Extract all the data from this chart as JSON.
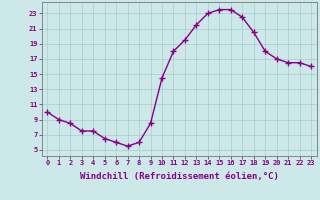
{
  "x": [
    0,
    1,
    2,
    3,
    4,
    5,
    6,
    7,
    8,
    9,
    10,
    11,
    12,
    13,
    14,
    15,
    16,
    17,
    18,
    19,
    20,
    21,
    22,
    23
  ],
  "y": [
    10,
    9,
    8.5,
    7.5,
    7.5,
    6.5,
    6,
    5.5,
    6,
    8.5,
    14.5,
    18,
    19.5,
    21.5,
    23,
    23.5,
    23.5,
    22.5,
    20.5,
    18,
    17,
    16.5,
    16.5,
    16
  ],
  "line_color": "#880088",
  "marker": "+",
  "markersize": 4,
  "linewidth": 1.0,
  "background_color": "#cce8e8",
  "grid_color": "#aacccc",
  "xlabel": "Windchill (Refroidissement éolien,°C)",
  "xlabel_fontsize": 6.5,
  "ytick_labels": [
    "5",
    "7",
    "9",
    "11",
    "13",
    "15",
    "17",
    "19",
    "21",
    "23"
  ],
  "ytick_vals": [
    5,
    7,
    9,
    11,
    13,
    15,
    17,
    19,
    21,
    23
  ],
  "ylim": [
    4.2,
    24.5
  ],
  "xlim": [
    -0.5,
    23.5
  ],
  "xtick_vals": [
    0,
    1,
    2,
    3,
    4,
    5,
    6,
    7,
    8,
    9,
    10,
    11,
    12,
    13,
    14,
    15,
    16,
    17,
    18,
    19,
    20,
    21,
    22,
    23
  ],
  "xtick_labels": [
    "0",
    "1",
    "2",
    "3",
    "4",
    "5",
    "6",
    "7",
    "8",
    "9",
    "10",
    "11",
    "12",
    "13",
    "14",
    "15",
    "16",
    "17",
    "18",
    "19",
    "20",
    "21",
    "22",
    "23"
  ],
  "tick_fontsize": 5.0
}
